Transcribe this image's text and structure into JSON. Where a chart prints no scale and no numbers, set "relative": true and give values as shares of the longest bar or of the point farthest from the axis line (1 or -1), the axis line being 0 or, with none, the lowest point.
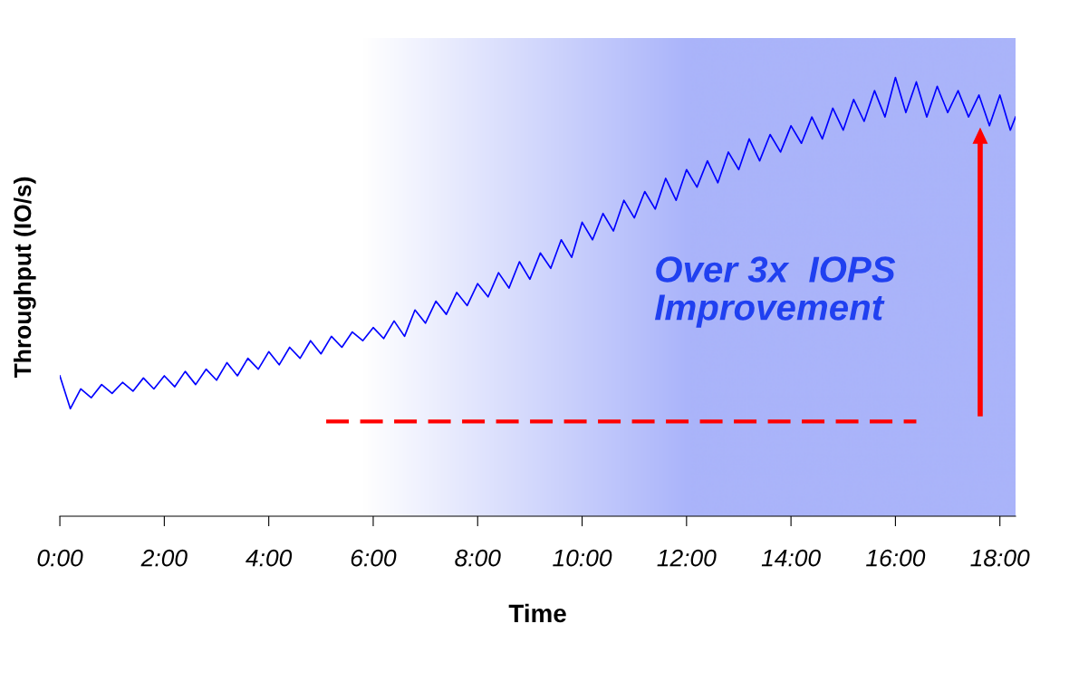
{
  "chart_data": {
    "type": "line",
    "relative": true,
    "xlabel": "Time",
    "ylabel": "Throughput (IO/s)",
    "xlim": [
      0,
      18.3
    ],
    "xticks": [
      {
        "value": 0,
        "label": "0:00"
      },
      {
        "value": 2,
        "label": "2:00"
      },
      {
        "value": 4,
        "label": "4:00"
      },
      {
        "value": 6,
        "label": "6:00"
      },
      {
        "value": 8,
        "label": "8:00"
      },
      {
        "value": 10,
        "label": "10:00"
      },
      {
        "value": 12,
        "label": "12:00"
      },
      {
        "value": 14,
        "label": "14:00"
      },
      {
        "value": 16,
        "label": "16:00"
      },
      {
        "value": 18,
        "label": "18:00"
      }
    ],
    "series": [
      {
        "color": "#0000ff",
        "x": [
          0.0,
          0.2,
          0.4,
          0.6,
          0.8,
          1.0,
          1.2,
          1.4,
          1.6,
          1.8,
          2.0,
          2.2,
          2.4,
          2.6,
          2.8,
          3.0,
          3.2,
          3.4,
          3.6,
          3.8,
          4.0,
          4.2,
          4.4,
          4.6,
          4.8,
          5.0,
          5.2,
          5.4,
          5.6,
          5.8,
          6.0,
          6.2,
          6.4,
          6.6,
          6.8,
          7.0,
          7.2,
          7.4,
          7.6,
          7.8,
          8.0,
          8.2,
          8.4,
          8.6,
          8.8,
          9.0,
          9.2,
          9.4,
          9.6,
          9.8,
          10.0,
          10.2,
          10.4,
          10.6,
          10.8,
          11.0,
          11.2,
          11.4,
          11.6,
          11.8,
          12.0,
          12.2,
          12.4,
          12.6,
          12.8,
          13.0,
          13.2,
          13.4,
          13.6,
          13.8,
          14.0,
          14.2,
          14.4,
          14.6,
          14.8,
          15.0,
          15.2,
          15.4,
          15.6,
          15.8,
          16.0,
          16.2,
          16.4,
          16.6,
          16.8,
          17.0,
          17.2,
          17.4,
          17.6,
          17.8,
          18.0,
          18.2,
          18.3
        ],
        "values": [
          0.32,
          0.245,
          0.29,
          0.27,
          0.3,
          0.28,
          0.305,
          0.285,
          0.315,
          0.29,
          0.32,
          0.295,
          0.33,
          0.3,
          0.335,
          0.31,
          0.35,
          0.32,
          0.36,
          0.335,
          0.375,
          0.345,
          0.385,
          0.36,
          0.4,
          0.37,
          0.41,
          0.385,
          0.42,
          0.4,
          0.43,
          0.405,
          0.445,
          0.41,
          0.47,
          0.44,
          0.49,
          0.46,
          0.51,
          0.48,
          0.53,
          0.5,
          0.555,
          0.52,
          0.58,
          0.54,
          0.6,
          0.565,
          0.63,
          0.59,
          0.67,
          0.63,
          0.69,
          0.65,
          0.72,
          0.68,
          0.74,
          0.7,
          0.77,
          0.72,
          0.79,
          0.75,
          0.81,
          0.76,
          0.83,
          0.79,
          0.86,
          0.81,
          0.87,
          0.83,
          0.89,
          0.85,
          0.91,
          0.86,
          0.93,
          0.88,
          0.95,
          0.9,
          0.97,
          0.91,
          1.0,
          0.92,
          0.99,
          0.91,
          0.98,
          0.92,
          0.97,
          0.91,
          0.96,
          0.89,
          0.96,
          0.88,
          0.91
        ]
      },
      {
        "color": "#ff0000",
        "line_style": "dashed",
        "x": [
          5.1,
          16.4
        ],
        "values": [
          0.216,
          0.216
        ]
      }
    ],
    "bands": [
      {
        "axis": "x",
        "from": 5.8,
        "to": 18.3,
        "color": "#aab4fa"
      }
    ],
    "annotations": [
      "Over 3x  IOPS\nImprovement"
    ]
  }
}
